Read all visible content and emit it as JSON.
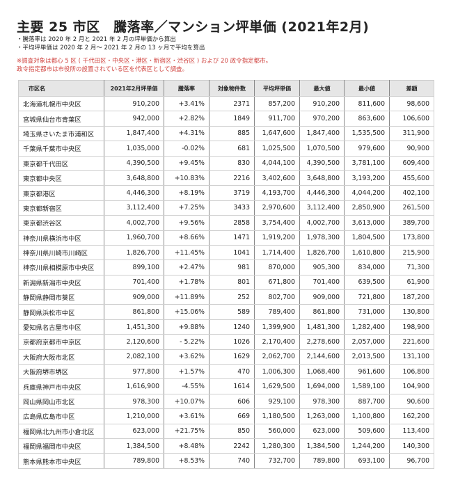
{
  "title": "主要 25 市区　騰落率／マンション坪単価 (2021年2月)",
  "notes": [
    "・騰落率は 2020 年 2 月と 2021 年 2 月の坪単価から算出",
    "・平均坪単価は 2020 年 2 月～ 2021 年 2 月の 13 ヶ月で平均を算出"
  ],
  "remarks": [
    "※調査対象は都心 5 区 ( 千代田区・中央区・港区・新宿区・渋谷区 ) および 20 政令指定都市。",
    "政令指定都市は市役所の設置されている区を代表区として調査。"
  ],
  "remark_color": "#d0433f",
  "table": {
    "headers": [
      "市区名",
      "2021年2月坪単価",
      "騰落率",
      "対象物件数",
      "平均坪単価",
      "最大値",
      "最小値",
      "差額"
    ],
    "rows": [
      [
        "北海道札幌市中央区",
        "910,200",
        "+3.41%",
        "2371",
        "857,200",
        "910,200",
        "811,600",
        "98,600"
      ],
      [
        "宮城県仙台市青葉区",
        "942,000",
        "+2.82%",
        "1849",
        "911,700",
        "970,200",
        "863,600",
        "106,600"
      ],
      [
        "埼玉県さいたま市浦和区",
        "1,847,400",
        "+4.31%",
        "885",
        "1,647,600",
        "1,847,400",
        "1,535,500",
        "311,900"
      ],
      [
        "千葉県千葉市中央区",
        "1,035,000",
        "-0.02%",
        "681",
        "1,025,500",
        "1,070,500",
        "979,600",
        "90,900"
      ],
      [
        "東京都千代田区",
        "4,390,500",
        "+9.45%",
        "830",
        "4,044,100",
        "4,390,500",
        "3,781,100",
        "609,400"
      ],
      [
        "東京都中央区",
        "3,648,800",
        "+10.83%",
        "2216",
        "3,402,600",
        "3,648,800",
        "3,193,200",
        "455,600"
      ],
      [
        "東京都港区",
        "4,446,300",
        "+8.19%",
        "3719",
        "4,193,700",
        "4,446,300",
        "4,044,200",
        "402,100"
      ],
      [
        "東京都新宿区",
        "3,112,400",
        "+7.25%",
        "3433",
        "2,970,600",
        "3,112,400",
        "2,850,900",
        "261,500"
      ],
      [
        "東京都渋谷区",
        "4,002,700",
        "+9.56%",
        "2858",
        "3,754,400",
        "4,002,700",
        "3,613,000",
        "389,700"
      ],
      [
        "神奈川県横浜市中区",
        "1,960,700",
        "+8.66%",
        "1471",
        "1,919,200",
        "1,978,300",
        "1,804,500",
        "173,800"
      ],
      [
        "神奈川県川崎市川崎区",
        "1,826,700",
        "+11.45%",
        "1041",
        "1,714,400",
        "1,826,700",
        "1,610,800",
        "215,900"
      ],
      [
        "神奈川県相模原市中央区",
        "899,100",
        "+2.47%",
        "981",
        "870,000",
        "905,300",
        "834,000",
        "71,300"
      ],
      [
        "新潟県新潟市中央区",
        "701,400",
        "+1.78%",
        "801",
        "671,800",
        "701,400",
        "639,500",
        "61,900"
      ],
      [
        "静岡県静岡市葵区",
        "909,000",
        "+11.89%",
        "252",
        "802,700",
        "909,000",
        "721,800",
        "187,200"
      ],
      [
        "静岡県浜松市中区",
        "861,800",
        "+15.06%",
        "589",
        "789,400",
        "861,800",
        "731,000",
        "130,800"
      ],
      [
        "愛知県名古屋市中区",
        "1,451,300",
        "+9.88%",
        "1240",
        "1,399,900",
        "1,481,300",
        "1,282,400",
        "198,900"
      ],
      [
        "京都府京都市中京区",
        "2,120,600",
        "- 5.22%",
        "1026",
        "2,170,400",
        "2,278,600",
        "2,057,000",
        "221,600"
      ],
      [
        "大阪府大阪市北区",
        "2,082,100",
        "+3.62%",
        "1629",
        "2,062,700",
        "2,144,600",
        "2,013,500",
        "131,100"
      ],
      [
        "大阪府堺市堺区",
        "977,800",
        "+1.57%",
        "470",
        "1,006,300",
        "1,068,400",
        "961,600",
        "106,800"
      ],
      [
        "兵庫県神戸市中央区",
        "1,616,900",
        "-4.55%",
        "1614",
        "1,629,500",
        "1,694,000",
        "1,589,100",
        "104,900"
      ],
      [
        "岡山県岡山市北区",
        "978,300",
        "+10.07%",
        "606",
        "929,100",
        "978,300",
        "887,700",
        "90,600"
      ],
      [
        "広島県広島市中区",
        "1,210,000",
        "+3.61%",
        "669",
        "1,180,500",
        "1,263,000",
        "1,100,800",
        "162,200"
      ],
      [
        "福岡県北九州市小倉北区",
        "623,000",
        "+21.75%",
        "850",
        "560,000",
        "623,000",
        "509,600",
        "113,400"
      ],
      [
        "福岡県福岡市中央区",
        "1,384,500",
        "+8.48%",
        "2242",
        "1,280,300",
        "1,384,500",
        "1,244,200",
        "140,300"
      ],
      [
        "熊本県熊本市中央区",
        "789,800",
        "+8.53%",
        "740",
        "732,700",
        "789,800",
        "693,100",
        "96,700"
      ]
    ]
  }
}
